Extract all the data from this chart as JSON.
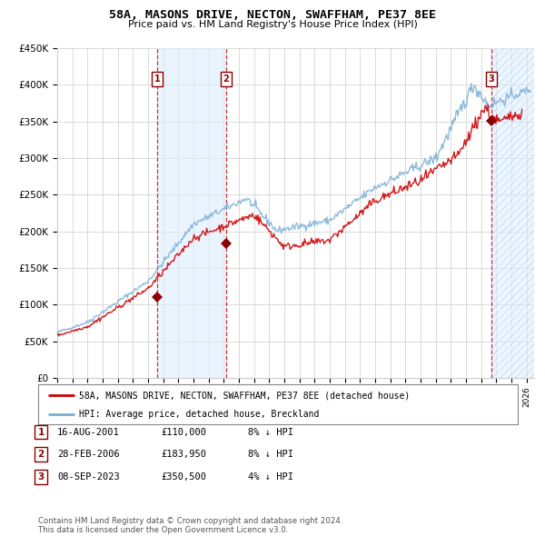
{
  "title": "58A, MASONS DRIVE, NECTON, SWAFFHAM, PE37 8EE",
  "subtitle": "Price paid vs. HM Land Registry's House Price Index (HPI)",
  "ylim": [
    0,
    450000
  ],
  "xlim_start": 1995.0,
  "xlim_end": 2026.5,
  "yticks": [
    0,
    50000,
    100000,
    150000,
    200000,
    250000,
    300000,
    350000,
    400000,
    450000
  ],
  "ytick_labels": [
    "£0",
    "£50K",
    "£100K",
    "£150K",
    "£200K",
    "£250K",
    "£300K",
    "£350K",
    "£400K",
    "£450K"
  ],
  "sale_dates": [
    2001.62,
    2006.16,
    2023.69
  ],
  "sale_prices": [
    110000,
    183950,
    350500
  ],
  "sale_labels": [
    "1",
    "2",
    "3"
  ],
  "shaded_region": [
    2001.62,
    2006.16
  ],
  "hatch_region_start": 2023.69,
  "legend_line1": "58A, MASONS DRIVE, NECTON, SWAFFHAM, PE37 8EE (detached house)",
  "legend_line2": "HPI: Average price, detached house, Breckland",
  "table_rows": [
    {
      "num": "1",
      "date": "16-AUG-2001",
      "price": "£110,000",
      "hpi": "8% ↓ HPI"
    },
    {
      "num": "2",
      "date": "28-FEB-2006",
      "price": "£183,950",
      "hpi": "8% ↓ HPI"
    },
    {
      "num": "3",
      "date": "08-SEP-2023",
      "price": "£350,500",
      "hpi": "4% ↓ HPI"
    }
  ],
  "footer": "Contains HM Land Registry data © Crown copyright and database right 2024.\nThis data is licensed under the Open Government Licence v3.0.",
  "red_line_color": "#cc0000",
  "blue_line_color": "#7aaed6",
  "shade_color": "#ddeeff",
  "grid_color": "#cccccc",
  "background_color": "#ffffff"
}
